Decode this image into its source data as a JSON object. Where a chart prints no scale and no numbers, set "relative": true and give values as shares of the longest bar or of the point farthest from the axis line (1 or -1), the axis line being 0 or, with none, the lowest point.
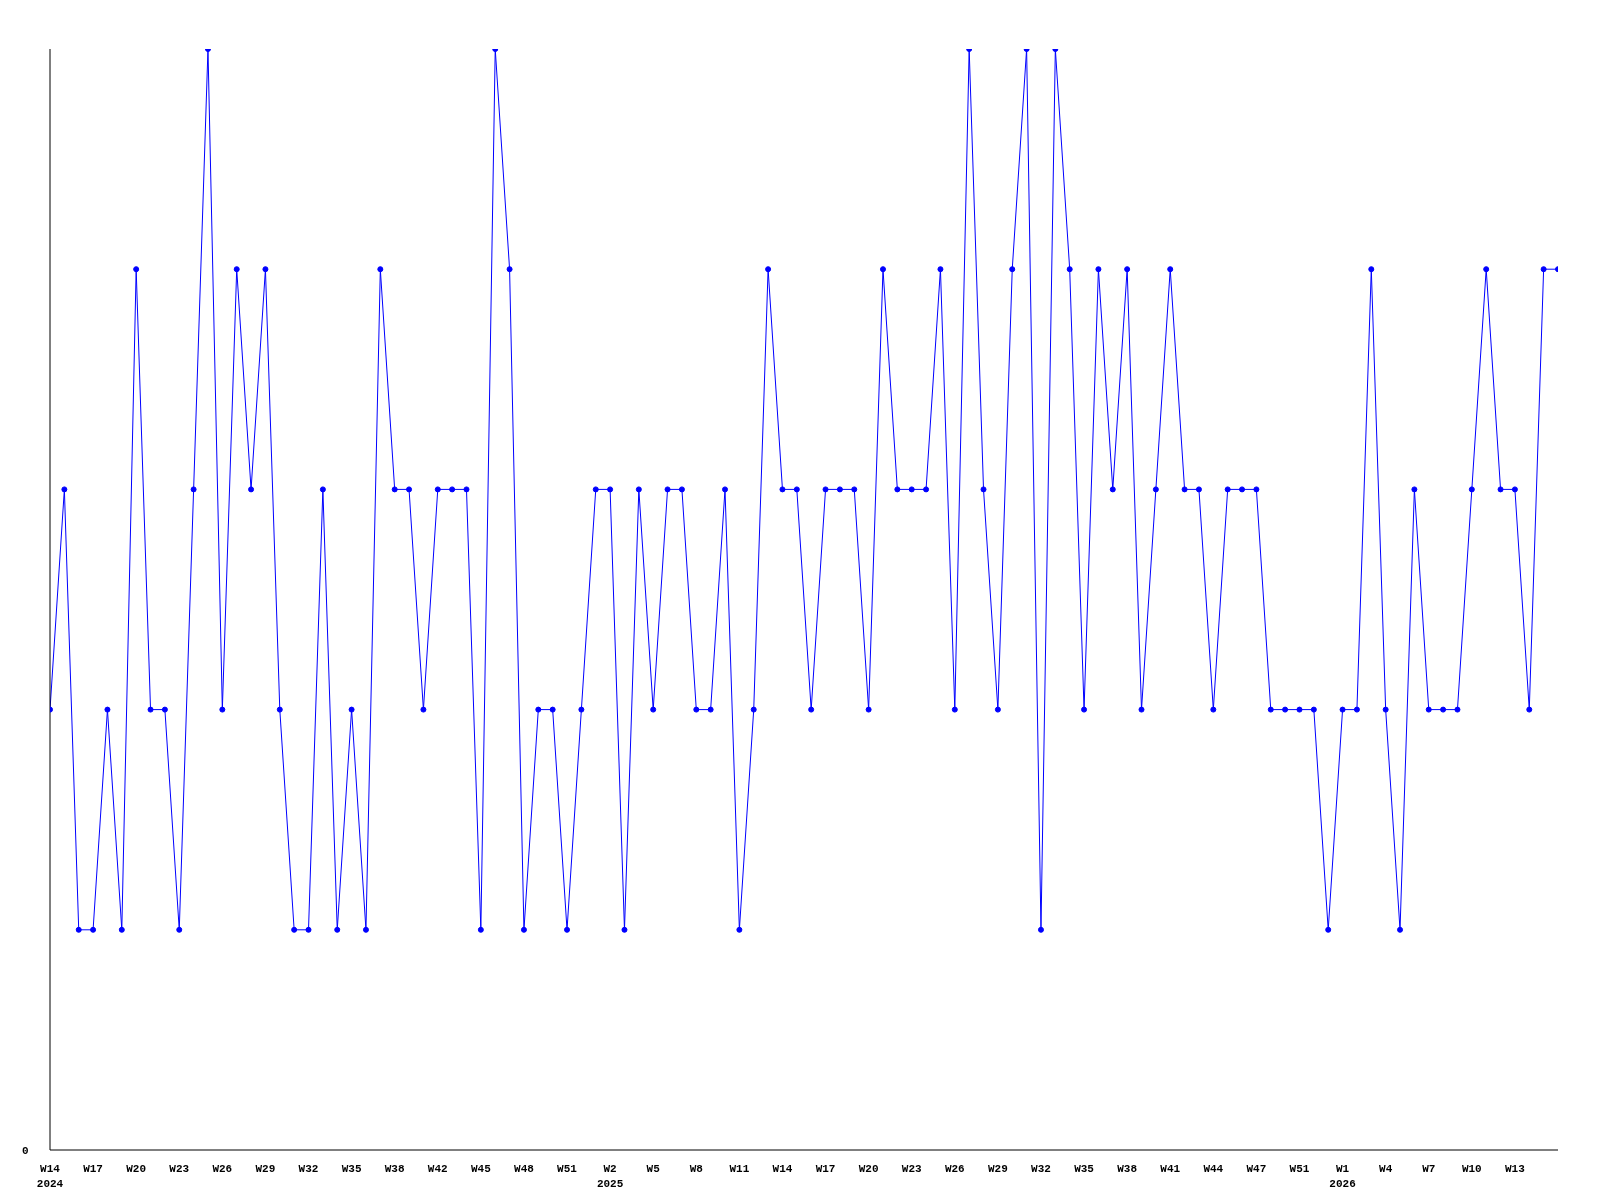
{
  "chart_data": {
    "type": "line",
    "relative": true,
    "color": "#0000ff",
    "marker": "circle",
    "annotations": [
      "0"
    ],
    "categories": [
      "W14\n2024",
      null,
      null,
      "W17",
      null,
      null,
      "W20",
      null,
      null,
      "W23",
      null,
      null,
      "W26",
      null,
      null,
      "W29",
      null,
      null,
      "W32",
      null,
      null,
      "W35",
      null,
      null,
      "W38",
      null,
      null,
      "W42",
      null,
      null,
      "W45",
      null,
      null,
      "W48",
      null,
      null,
      "W51",
      null,
      null,
      "W2\n2025",
      null,
      null,
      "W5",
      null,
      null,
      "W8",
      null,
      null,
      "W11",
      null,
      null,
      "W14",
      null,
      null,
      "W17",
      null,
      null,
      "W20",
      null,
      null,
      "W23",
      null,
      null,
      "W26",
      null,
      null,
      "W29",
      null,
      null,
      "W32",
      null,
      null,
      "W35",
      null,
      null,
      "W38",
      null,
      null,
      "W41",
      null,
      null,
      "W44",
      null,
      null,
      "W47",
      null,
      null,
      "W51",
      null,
      null,
      "W1\n2026",
      null,
      null,
      "W4",
      null,
      null,
      "W7",
      null,
      null,
      "W10",
      null,
      null,
      "W13",
      null,
      null,
      null
    ],
    "values": [
      0.4,
      0.6,
      0.2,
      0.2,
      0.4,
      0.2,
      0.8,
      0.4,
      0.4,
      0.2,
      0.6,
      1,
      0.4,
      0.8,
      0.6,
      0.8,
      0.4,
      0.2,
      0.2,
      0.6,
      0.2,
      0.4,
      0.2,
      0.8,
      0.6,
      0.6,
      0.4,
      0.6,
      0.6,
      0.6,
      0.2,
      1,
      0.8,
      0.2,
      0.4,
      0.4,
      0.2,
      0.4,
      0.6,
      0.6,
      0.2,
      0.6,
      0.4,
      0.6,
      0.6,
      0.4,
      0.4,
      0.6,
      0.2,
      0.4,
      0.8,
      0.6,
      0.6,
      0.4,
      0.6,
      0.6,
      0.6,
      0.4,
      0.8,
      0.6,
      0.6,
      0.6,
      0.8,
      0.4,
      1,
      0.6,
      0.4,
      0.8,
      1,
      0.2,
      1,
      0.8,
      0.4,
      0.8,
      0.6,
      0.8,
      0.4,
      0.6,
      0.8,
      0.6,
      0.6,
      0.4,
      0.6,
      0.6,
      0.6,
      0.4,
      0.4,
      0.4,
      0.4,
      0.2,
      0.4,
      0.4,
      0.8,
      0.4,
      0.2,
      0.6,
      0.4,
      0.4,
      0.4,
      0.6,
      0.8,
      0.6,
      0.6,
      0.4,
      0.8,
      0.8
    ]
  }
}
